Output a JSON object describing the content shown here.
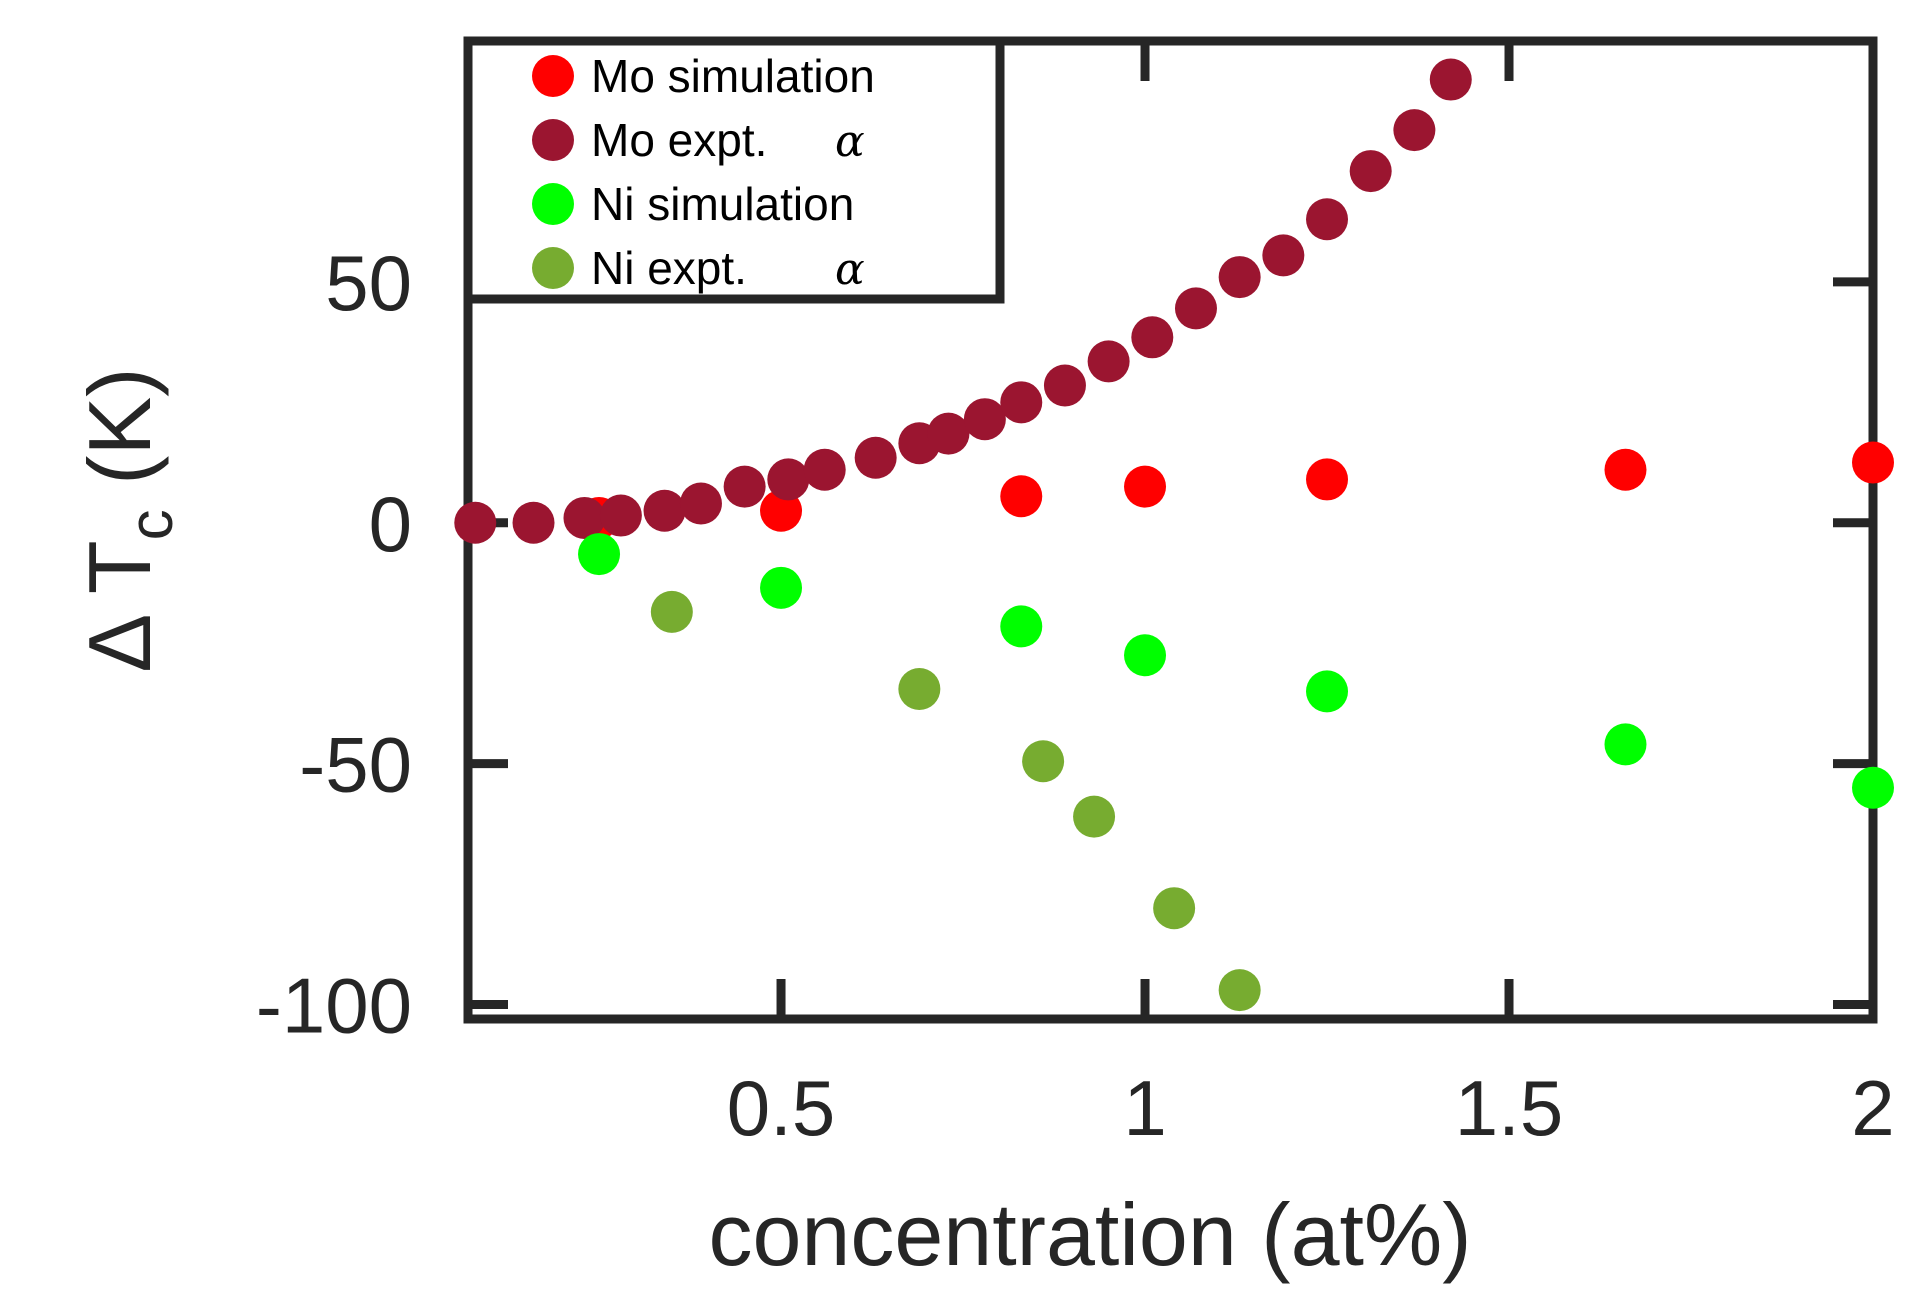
{
  "chart_data": {
    "type": "scatter",
    "xlabel": "concentration (at%)",
    "ylabel_prefix": "Δ T",
    "ylabel_sub": "c",
    "ylabel_suffix": " (K)",
    "xlim": [
      0.07,
      2.0
    ],
    "ylim": [
      -103,
      100
    ],
    "xticks": [
      0.5,
      1,
      1.5,
      2
    ],
    "xtick_labels": [
      "0.5",
      "1",
      "1.5",
      "2"
    ],
    "yticks": [
      -100,
      -50,
      0,
      50
    ],
    "ytick_labels": [
      "-100",
      "-50",
      "0",
      "50"
    ],
    "grid": false,
    "legend_position": "top-left",
    "series": [
      {
        "name": "Mo simulation",
        "alpha_mark": "",
        "color": "#ff0000",
        "points": [
          [
            0.25,
            1
          ],
          [
            0.5,
            2.5
          ],
          [
            0.83,
            5.5
          ],
          [
            1.0,
            7.5
          ],
          [
            1.25,
            9
          ],
          [
            1.66,
            11
          ],
          [
            2.0,
            12.5
          ]
        ]
      },
      {
        "name": "Mo expt.",
        "alpha_mark": "α",
        "color": "#9b1530",
        "points": [
          [
            0.08,
            0
          ],
          [
            0.16,
            0
          ],
          [
            0.23,
            1
          ],
          [
            0.28,
            1.5
          ],
          [
            0.34,
            2.5
          ],
          [
            0.39,
            4
          ],
          [
            0.45,
            7.5
          ],
          [
            0.51,
            9
          ],
          [
            0.56,
            11
          ],
          [
            0.63,
            13.5
          ],
          [
            0.69,
            16.5
          ],
          [
            0.73,
            18.5
          ],
          [
            0.78,
            21.5
          ],
          [
            0.83,
            25
          ],
          [
            0.89,
            28.5
          ],
          [
            0.95,
            33.5
          ],
          [
            1.01,
            38.5
          ],
          [
            1.07,
            44.5
          ],
          [
            1.13,
            51
          ],
          [
            1.19,
            55.5
          ],
          [
            1.25,
            63
          ],
          [
            1.31,
            73
          ],
          [
            1.37,
            81.5
          ],
          [
            1.42,
            92
          ]
        ]
      },
      {
        "name": "Ni simulation",
        "alpha_mark": "",
        "color": "#00ff00",
        "points": [
          [
            0.25,
            -6.5
          ],
          [
            0.5,
            -13.5
          ],
          [
            0.83,
            -21.5
          ],
          [
            1.0,
            -27.5
          ],
          [
            1.25,
            -35
          ],
          [
            1.66,
            -46
          ],
          [
            2.0,
            -55
          ]
        ]
      },
      {
        "name": "Ni expt.",
        "alpha_mark": "α",
        "color": "#77ac30",
        "points": [
          [
            0.35,
            -18.5
          ],
          [
            0.69,
            -34.5
          ],
          [
            0.86,
            -49.5
          ],
          [
            0.93,
            -61
          ],
          [
            1.04,
            -80
          ],
          [
            1.13,
            -97
          ]
        ]
      }
    ]
  }
}
